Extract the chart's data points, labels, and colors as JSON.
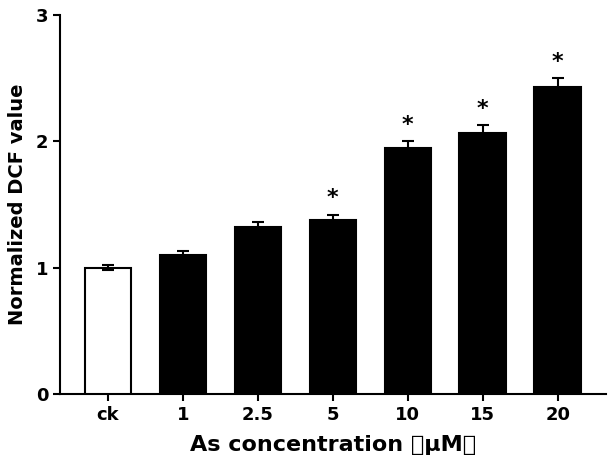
{
  "categories": [
    "ck",
    "1",
    "2.5",
    "5",
    "10",
    "15",
    "20"
  ],
  "values": [
    1.0,
    1.1,
    1.32,
    1.38,
    1.95,
    2.07,
    2.43
  ],
  "errors": [
    0.02,
    0.03,
    0.04,
    0.04,
    0.05,
    0.06,
    0.07
  ],
  "bar_colors": [
    "#ffffff",
    "#000000",
    "#000000",
    "#000000",
    "#000000",
    "#000000",
    "#000000"
  ],
  "bar_edgecolors": [
    "#000000",
    "#000000",
    "#000000",
    "#000000",
    "#000000",
    "#000000",
    "#000000"
  ],
  "significance": [
    false,
    false,
    false,
    true,
    true,
    true,
    true
  ],
  "ylabel": "Normalized DCF value",
  "xlabel": "As concentration （μM）",
  "ylim": [
    0,
    3
  ],
  "yticks": [
    0,
    1,
    2,
    3
  ],
  "bar_width": 0.62,
  "background_color": "#ffffff",
  "star_fontsize": 16,
  "axis_label_fontsize": 14,
  "tick_fontsize": 13,
  "xlabel_fontsize": 16
}
